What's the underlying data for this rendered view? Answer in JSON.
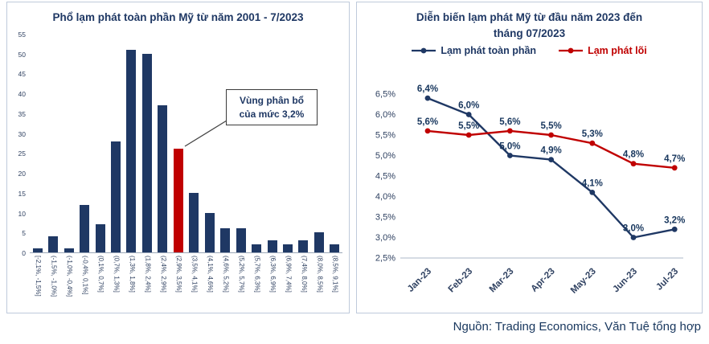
{
  "source": "Nguồn: Trading Economics, Văn Tuệ tổng hợp",
  "chart_data": [
    {
      "type": "bar",
      "title": "Phổ lạm phát toàn phần Mỹ từ năm 2001 - 7/2023",
      "categories": [
        "[-2,1%, -1,5%]",
        "(-1,5%, -1,0%]",
        "(-1,0%, -0,4%]",
        "(-0,4%, 0,1%]",
        "(0,1%, 0,7%]",
        "(0,7%, 1,3%]",
        "(1,3%, 1,8%]",
        "(1,8%, 2,4%]",
        "(2,4%, 2,9%]",
        "(2,9%, 3,5%]",
        "(3,5%, 4,1%]",
        "(4,1%, 4,6%]",
        "(4,6%, 5,2%]",
        "(5,2%, 5,7%]",
        "(5,7%, 6,3%]",
        "(6,3%, 6,9%]",
        "(6,9%, 7,4%]",
        "(7,4%, 8,0%]",
        "(8,0%, 8,5%]",
        "(8,5%, 9,1%]"
      ],
      "values": [
        1,
        4,
        1,
        12,
        7,
        28,
        51,
        50,
        37,
        26,
        15,
        10,
        6,
        6,
        2,
        3,
        2,
        3,
        5,
        2
      ],
      "highlight_index": 9,
      "bar_color": "#1f3864",
      "highlight_color": "#c00000",
      "ylim": [
        0,
        55
      ],
      "yticks": [
        0,
        5,
        10,
        15,
        20,
        25,
        30,
        35,
        40,
        45,
        50,
        55
      ],
      "grid": false,
      "annotation": {
        "line1": "Vùng phân bổ",
        "line2": "của mức 3,2%"
      }
    },
    {
      "type": "line",
      "title_line1": "Diễn biến lạm phát Mỹ từ đầu năm 2023 đến",
      "title_line2": "tháng 07/2023",
      "categories": [
        "Jan-23",
        "Feb-23",
        "Mar-23",
        "Apr-23",
        "May-23",
        "Jun-23",
        "Jul-23"
      ],
      "series": [
        {
          "name": "Lạm phát toàn phần",
          "color": "#1f3864",
          "values": [
            6.4,
            6.0,
            5.0,
            4.9,
            4.1,
            3.0,
            3.2
          ],
          "labels": [
            "6,4%",
            "6,0%",
            "5,0%",
            "4,9%",
            "4,1%",
            "3,0%",
            "3,2%"
          ]
        },
        {
          "name": "Lạm phát lõi",
          "color": "#c00000",
          "values": [
            5.6,
            5.5,
            5.6,
            5.5,
            5.3,
            4.8,
            4.7
          ],
          "labels": [
            "5,6%",
            "5,5%",
            "5,6%",
            "5,5%",
            "5,3%",
            "4,8%",
            "4,7%"
          ]
        }
      ],
      "ylim": [
        2.5,
        6.5
      ],
      "ytick_labels": [
        "2,5%",
        "3,0%",
        "3,5%",
        "4,0%",
        "4,5%",
        "5,0%",
        "5,5%",
        "6,0%",
        "6,5%"
      ],
      "grid": false,
      "legend_position": "top"
    }
  ]
}
